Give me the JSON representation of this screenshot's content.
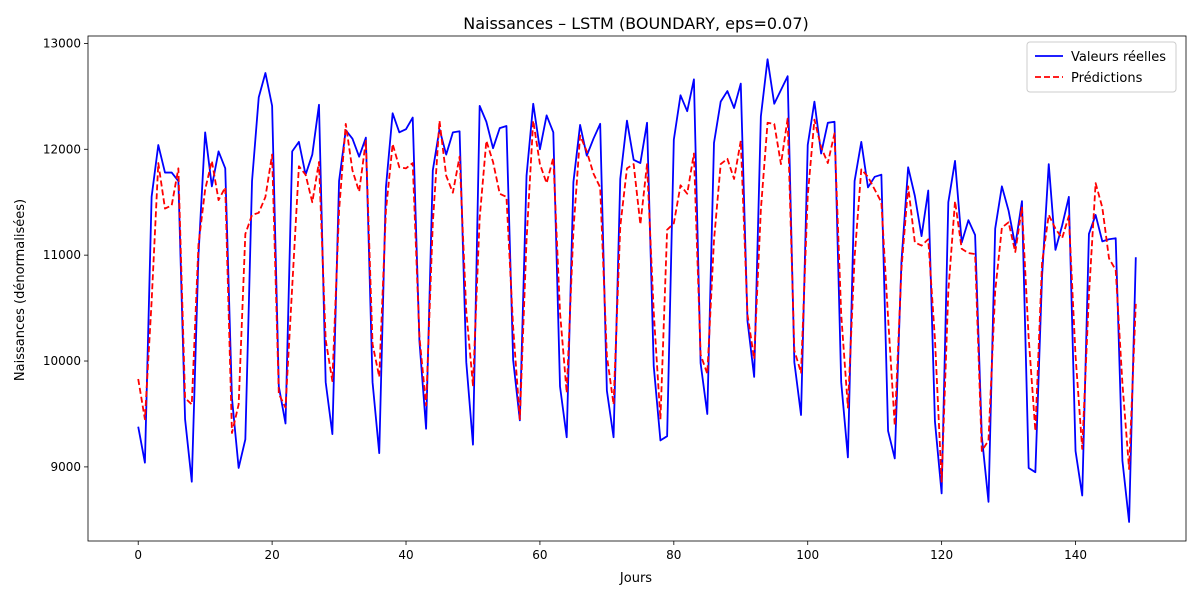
{
  "chart_data": {
    "type": "line",
    "title": "Naissances – LSTM (BOUNDARY, eps=0.07)",
    "xlabel": "Jours",
    "ylabel": "Naissances (dénormalisées)",
    "xlim": [
      -7.5,
      156.5
    ],
    "ylim": [
      8300,
      13070
    ],
    "xticks": [
      0,
      20,
      40,
      60,
      80,
      100,
      120,
      140
    ],
    "yticks": [
      9000,
      10000,
      11000,
      12000,
      13000
    ],
    "grid": false,
    "legend_position": "top-right",
    "series": [
      {
        "name": "Valeurs réelles",
        "color": "#0000ff",
        "style": "solid",
        "values": [
          9380,
          9040,
          11550,
          12040,
          11780,
          11780,
          11700,
          9450,
          8860,
          11000,
          12160,
          11650,
          11980,
          11820,
          9650,
          8990,
          9260,
          11700,
          12490,
          12720,
          12410,
          9760,
          9410,
          11980,
          12070,
          11760,
          11950,
          12420,
          9800,
          9310,
          11700,
          12180,
          12100,
          11930,
          12110,
          9800,
          9130,
          11640,
          12340,
          12160,
          12190,
          12300,
          10190,
          9360,
          11800,
          12190,
          11950,
          12160,
          12170,
          9990,
          9210,
          12410,
          12260,
          12010,
          12200,
          12220,
          10010,
          9440,
          11750,
          12430,
          12000,
          12320,
          12160,
          9760,
          9280,
          11690,
          12230,
          11940,
          12100,
          12240,
          9720,
          9280,
          11720,
          12270,
          11900,
          11870,
          12250,
          9950,
          9250,
          9290,
          12090,
          12510,
          12360,
          12660,
          9980,
          9500,
          12060,
          12450,
          12550,
          12390,
          12620,
          10380,
          9850,
          12310,
          12850,
          12430,
          12560,
          12690,
          9990,
          9490,
          12040,
          12450,
          11960,
          12250,
          12260,
          9800,
          9090,
          11700,
          12070,
          11640,
          11740,
          11760,
          9340,
          9080,
          10940,
          11830,
          11560,
          11180,
          11610,
          9430,
          8750,
          11500,
          11890,
          11120,
          11330,
          11190,
          9290,
          8670,
          11250,
          11650,
          11420,
          11090,
          11510,
          8990,
          8950,
          10800,
          11860,
          11050,
          11280,
          11550,
          9150,
          8730,
          11200,
          11380,
          11130,
          11150,
          11160,
          9060,
          8480,
          10980
        ],
        "points_count": 150
      },
      {
        "name": "Prédictions",
        "color": "#ff0000",
        "style": "dashed",
        "values": [
          9830,
          9450,
          10560,
          11870,
          11440,
          11470,
          11820,
          9650,
          9590,
          11100,
          11620,
          11890,
          11520,
          11640,
          9320,
          9590,
          11200,
          11380,
          11400,
          11550,
          11950,
          9690,
          9560,
          10700,
          11840,
          11760,
          11500,
          11880,
          10200,
          9810,
          11420,
          12240,
          11800,
          11600,
          12080,
          10160,
          9850,
          11420,
          12050,
          11830,
          11820,
          11870,
          10230,
          9580,
          11300,
          12270,
          11750,
          11590,
          11930,
          10470,
          9770,
          11350,
          12080,
          11880,
          11580,
          11550,
          10320,
          9450,
          11140,
          12270,
          11860,
          11680,
          11920,
          10460,
          9700,
          11230,
          12130,
          11980,
          11770,
          11640,
          10050,
          9590,
          11270,
          11820,
          11860,
          11290,
          11860,
          10460,
          9450,
          11240,
          11300,
          11660,
          11580,
          11960,
          10060,
          9880,
          11140,
          11860,
          11910,
          11720,
          12080,
          10440,
          10020,
          11430,
          12250,
          12240,
          11860,
          12290,
          10100,
          9890,
          11560,
          12280,
          12020,
          11870,
          12150,
          10440,
          9560,
          10980,
          11810,
          11740,
          11620,
          11500,
          10410,
          9390,
          10870,
          11650,
          11120,
          11090,
          11150,
          10210,
          8860,
          10660,
          11510,
          11060,
          11020,
          11010,
          9150,
          9250,
          10660,
          11260,
          11310,
          11030,
          11450,
          10220,
          9340,
          10930,
          11380,
          11250,
          11160,
          11370,
          10050,
          9170,
          10620,
          11680,
          11450,
          10970,
          10860,
          9790,
          8980,
          10540
        ],
        "points_count": 150
      }
    ]
  }
}
